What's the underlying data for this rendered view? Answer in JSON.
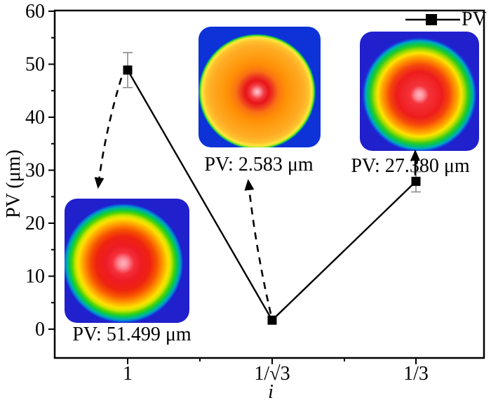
{
  "chart_data": {
    "type": "line",
    "title": "",
    "xlabel": "i",
    "ylabel": "PV (μm)",
    "categories": [
      "1",
      "1/√3",
      "1/3"
    ],
    "series": [
      {
        "name": "PV",
        "marker": "filled-square",
        "color": "#000000",
        "values": [
          48.9,
          1.7,
          27.9
        ],
        "errors_up": [
          3.3,
          0.3,
          1.8
        ],
        "errors_down": [
          3.3,
          0.3,
          2.0
        ]
      }
    ],
    "ylim": [
      0,
      60
    ],
    "y_axis": {
      "major": [
        0,
        10,
        20,
        30,
        40,
        50,
        60
      ],
      "minor": [
        5,
        15,
        25,
        35,
        45,
        55
      ]
    },
    "grid": false,
    "legend_position": "top-right-inside"
  },
  "insets": [
    {
      "label": "PV: 51.499 μm",
      "links_to_category": "1",
      "arrow_style": "dashed",
      "colormap": "rainbow: blue edge, green-yellow ring, orange, large red body, pink center"
    },
    {
      "label": "PV: 2.583 μm",
      "links_to_category": "1/√3",
      "arrow_style": "dashed",
      "colormap": "rainbow: thin green-blue edge, orange body, red ring, pink center"
    },
    {
      "label": "PV: 27.380 μm",
      "links_to_category": "1/3",
      "arrow_style": "solid",
      "colormap": "rainbow: blue edge, green ring, yellow-orange ring, red body, pink center"
    }
  ],
  "colors": {
    "line": "#000000",
    "marker": "#000000",
    "text": "#000000",
    "frame": "#000000",
    "error_bar": "#8c8c8c",
    "background": "#ffffff",
    "colormap_scale": [
      "#2020cc",
      "#0077dd",
      "#00c853",
      "#8ce01e",
      "#ffe100",
      "#ffb300",
      "#ff8400",
      "#f65300",
      "#ee1c1c",
      "#fb8290",
      "#ffc9ce"
    ]
  }
}
